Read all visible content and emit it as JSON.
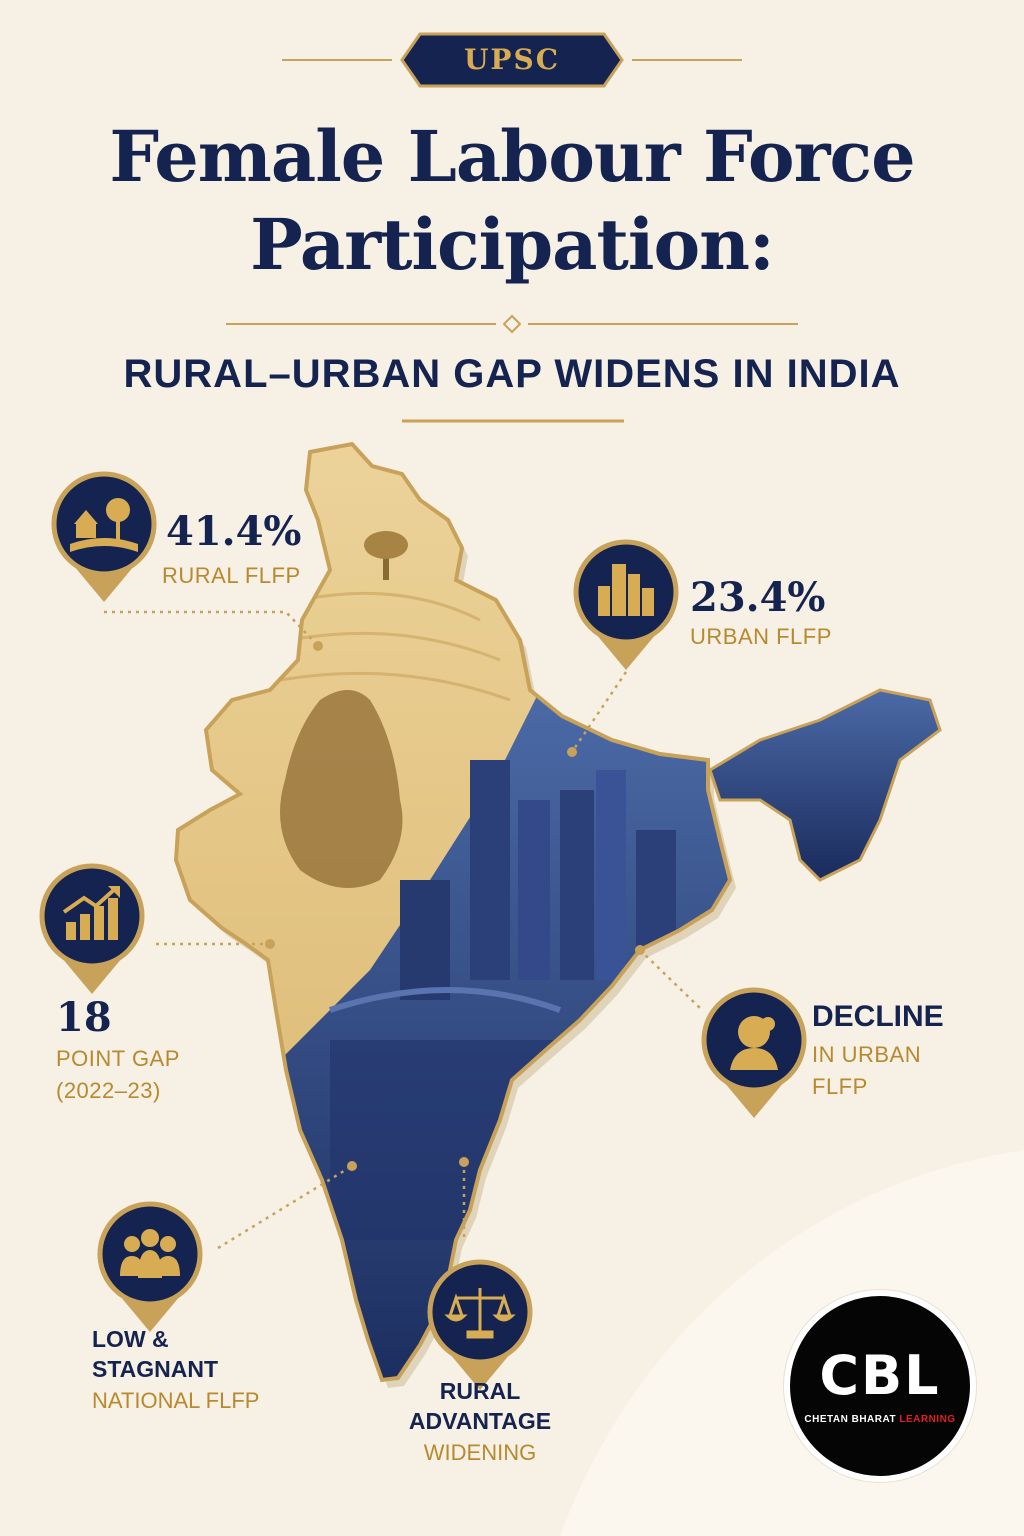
{
  "header": {
    "badge": "UPSC",
    "title_line1": "Female Labour Force",
    "title_line2": "Participation:",
    "subtitle": "RURAL–URBAN GAP WIDENS IN INDIA"
  },
  "stats": {
    "rural": {
      "value": "41.4%",
      "label": "RURAL FLFP",
      "icon": "farm-house-icon"
    },
    "urban": {
      "value": "23.4%",
      "label": "URBAN FLFP",
      "icon": "city-buildings-icon"
    },
    "gap": {
      "value": "18",
      "label_line1": "POINT GAP",
      "label_line2": "(2022–23)",
      "icon": "rising-bar-chart-icon"
    },
    "decline": {
      "head": "DECLINE",
      "label_line1": "IN URBAN",
      "label_line2": "FLFP",
      "icon": "woman-profile-icon"
    },
    "national": {
      "line1": "LOW &",
      "line2": "STAGNANT",
      "line3": "NATIONAL FLFP",
      "icon": "group-of-people-icon"
    },
    "advantage": {
      "line1": "RURAL",
      "line2": "ADVANTAGE",
      "line3": "WIDENING",
      "icon": "balance-scale-icon"
    }
  },
  "logo": {
    "main": "CBL",
    "sub_white": "CHETAN BHARAT ",
    "sub_red": "LEARNING"
  },
  "colors": {
    "navy": "#14234f",
    "gold": "#b8892f",
    "background": "#f7f0e4"
  }
}
